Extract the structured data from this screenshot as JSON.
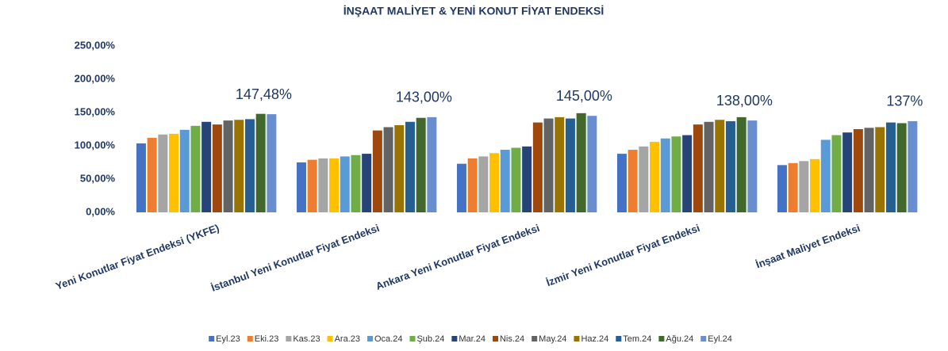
{
  "chart_data": {
    "type": "bar",
    "title": "İNŞAAT MALİYET & YENİ KONUT FİYAT ENDEKSİ",
    "categories": [
      "Yeni Konutlar Fiyat Endeksi (YKFE)",
      "İstanbul Yeni Konutlar Fiyat Endeksi",
      "Ankara Yeni Konutlar Fiyat Endeksi",
      "İzmir Yeni Konutlar Fiyat Endeksi",
      "İnşaat Maliyet Endeksi"
    ],
    "series": [
      {
        "name": "Eyl.23",
        "color": "#4472c4",
        "values": [
          103.6,
          75,
          73,
          88,
          71
        ]
      },
      {
        "name": "Eki.23",
        "color": "#ed7d31",
        "values": [
          112,
          79,
          81,
          94,
          74
        ]
      },
      {
        "name": "Kas.23",
        "color": "#a5a5a5",
        "values": [
          117,
          81,
          84,
          99,
          77
        ]
      },
      {
        "name": "Ara.23",
        "color": "#ffc000",
        "values": [
          118,
          81,
          89,
          106,
          80
        ]
      },
      {
        "name": "Oca.24",
        "color": "#5b9bd5",
        "values": [
          124,
          84,
          94,
          111,
          109
        ]
      },
      {
        "name": "Şub.24",
        "color": "#70ad47",
        "values": [
          130,
          86,
          97,
          114,
          116
        ]
      },
      {
        "name": "Mar.24",
        "color": "#264478",
        "values": [
          136,
          88,
          99,
          116,
          120
        ]
      },
      {
        "name": "Nis.24",
        "color": "#9e480e",
        "values": [
          132,
          123,
          135,
          132,
          125
        ]
      },
      {
        "name": "May.24",
        "color": "#636363",
        "values": [
          138,
          128,
          141,
          136,
          127
        ]
      },
      {
        "name": "Haz.24",
        "color": "#997300",
        "values": [
          139,
          131,
          143,
          139,
          128
        ]
      },
      {
        "name": "Tem.24",
        "color": "#255e91",
        "values": [
          140,
          136,
          141,
          137,
          135
        ]
      },
      {
        "name": "Ağu.24",
        "color": "#43682b",
        "values": [
          148,
          142,
          149,
          143,
          134
        ]
      },
      {
        "name": "Eyl.24",
        "color": "#698ed0",
        "values": [
          147.48,
          143,
          145,
          138,
          137
        ],
        "value_labels": [
          "147,48%",
          "143,00%",
          "145,00%",
          "138,00%",
          "137%"
        ]
      }
    ],
    "ylim": [
      0,
      250
    ],
    "yticks": [
      {
        "value": 0,
        "label": "0,00%"
      },
      {
        "value": 50,
        "label": "50,00%"
      },
      {
        "value": 100,
        "label": "100,00%"
      },
      {
        "value": 150,
        "label": "150,00%"
      },
      {
        "value": 200,
        "label": "200,00%"
      },
      {
        "value": 250,
        "label": "250,00%"
      }
    ],
    "grid": false,
    "legend": "bottom"
  }
}
